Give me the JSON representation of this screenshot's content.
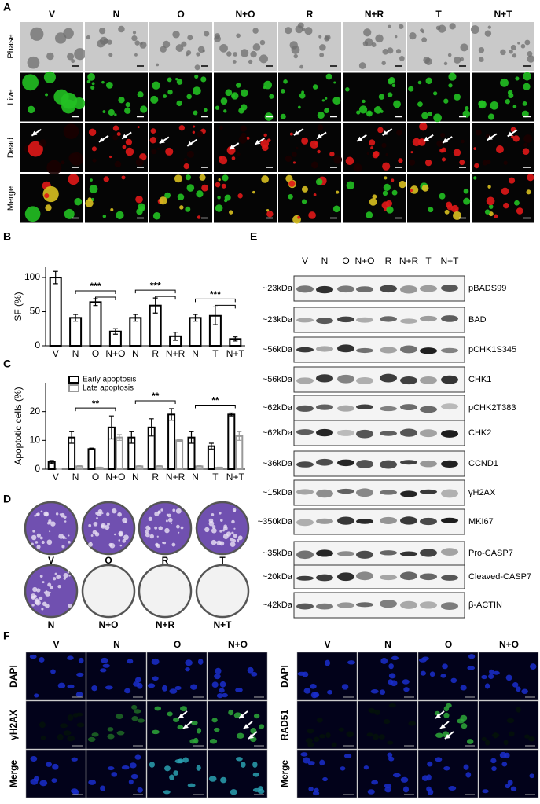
{
  "panel_labels": [
    "A",
    "B",
    "C",
    "D",
    "E",
    "F"
  ],
  "panel_a": {
    "columns": [
      "V",
      "N",
      "O",
      "N+O",
      "R",
      "N+R",
      "T",
      "N+T"
    ],
    "rows": [
      "Phase",
      "Live",
      "Dead",
      "Merge"
    ]
  },
  "chart_data": [
    {
      "type": "bar",
      "ylabel": "SF (%)",
      "categories": [
        "V",
        "N",
        "O",
        "N+O",
        "N",
        "R",
        "N+R",
        "N",
        "T",
        "N+T"
      ],
      "values": [
        100,
        41,
        64,
        21,
        41,
        59,
        14,
        41,
        44,
        10
      ],
      "errors": [
        9,
        5,
        5,
        4,
        5,
        11,
        6,
        5,
        13,
        3
      ],
      "color": "#000000",
      "ylim": [
        0,
        115
      ],
      "yticks": [
        0,
        50,
        100
      ],
      "annotations": [
        "***",
        "***",
        "***"
      ]
    },
    {
      "type": "bar",
      "ylabel": "Apoptotic cells (%)",
      "categories": [
        "V",
        "N",
        "O",
        "N+O",
        "N",
        "R",
        "N+R",
        "N",
        "T",
        "N+T"
      ],
      "series": [
        {
          "name": "Early apoptosis",
          "color": "#000000",
          "values": [
            2.5,
            11,
            7,
            14.5,
            11,
            14.5,
            19,
            11,
            8,
            19
          ],
          "errors": [
            0.5,
            2,
            0.3,
            4,
            2,
            3,
            2,
            2,
            1,
            0.5
          ]
        },
        {
          "name": "Late apoptosis",
          "color": "#999999",
          "values": [
            0,
            1,
            0.5,
            11,
            1,
            1,
            10,
            1,
            0.5,
            11.5
          ],
          "errors": [
            0,
            0.2,
            0.2,
            1,
            0.2,
            0.2,
            0.3,
            0.2,
            0.2,
            1.5
          ]
        }
      ],
      "ylim": [
        0,
        30
      ],
      "yticks": [
        0,
        10,
        20
      ],
      "legend": "top-left",
      "annotations": [
        "**",
        "**",
        "**"
      ]
    }
  ],
  "panel_d": {
    "top": [
      "V",
      "O",
      "R",
      "T"
    ],
    "bottom": [
      "N",
      "N+O",
      "N+R",
      "N+T"
    ]
  },
  "panel_e": {
    "lanes": [
      "V",
      "N",
      "O",
      "N+O",
      "R",
      "N+R",
      "T",
      "N+T"
    ],
    "bands": [
      {
        "size": "~23kDa",
        "protein": "pBADS99"
      },
      {
        "size": "~23kDa",
        "protein": "BAD"
      },
      {
        "size": "~56kDa",
        "protein": "pCHK1S345"
      },
      {
        "size": "~56kDa",
        "protein": "CHK1"
      },
      {
        "size": "~62kDa",
        "protein": "pCHK2T383"
      },
      {
        "size": "~62kDa",
        "protein": "CHK2"
      },
      {
        "size": "~36kDa",
        "protein": "CCND1"
      },
      {
        "size": "~15kDa",
        "protein": "γH2AX"
      },
      {
        "size": "~350kDa",
        "protein": "MKI67"
      },
      {
        "size": "~35kDa",
        "protein": "Pro-CASP7"
      },
      {
        "size": "~20kDa",
        "protein": "Cleaved-CASP7"
      },
      {
        "size": "~42kDa",
        "protein": "β-ACTIN"
      }
    ]
  },
  "panel_f": {
    "left": {
      "columns": [
        "V",
        "N",
        "O",
        "N+O"
      ],
      "rows": [
        "DAPI",
        "γH2AX",
        "Merge"
      ]
    },
    "right": {
      "columns": [
        "V",
        "N",
        "O",
        "N+O"
      ],
      "rows": [
        "DAPI",
        "RAD51",
        "Merge"
      ]
    }
  }
}
